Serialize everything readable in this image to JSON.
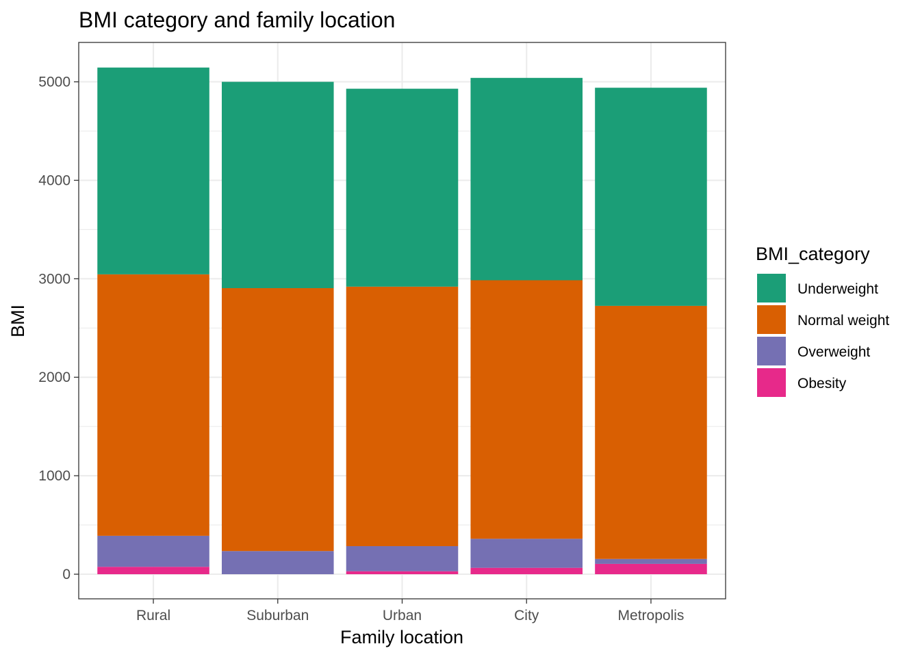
{
  "chart_data": {
    "type": "bar",
    "stacked": true,
    "title": "BMI category and family location",
    "xlabel": "Family location",
    "ylabel": "BMI",
    "categories": [
      "Rural",
      "Suburban",
      "Urban",
      "City",
      "Metropolis"
    ],
    "ylim": [
      -250,
      5400
    ],
    "yticks": [
      0,
      1000,
      2000,
      3000,
      4000,
      5000
    ],
    "grid": true,
    "legend": {
      "title": "BMI_category",
      "position": "right"
    },
    "series": [
      {
        "name": "Obesity",
        "color": "#E7298A",
        "values": [
          75,
          0,
          30,
          65,
          105
        ]
      },
      {
        "name": "Overweight",
        "color": "#7570B3",
        "values": [
          315,
          235,
          255,
          295,
          50
        ]
      },
      {
        "name": "Normal weight",
        "color": "#D95F02",
        "values": [
          2655,
          2670,
          2635,
          2625,
          2570
        ]
      },
      {
        "name": "Underweight",
        "color": "#1B9E77",
        "values": [
          2100,
          2095,
          2010,
          2055,
          2215
        ]
      }
    ],
    "legend_order": [
      "Underweight",
      "Normal weight",
      "Overweight",
      "Obesity"
    ]
  }
}
